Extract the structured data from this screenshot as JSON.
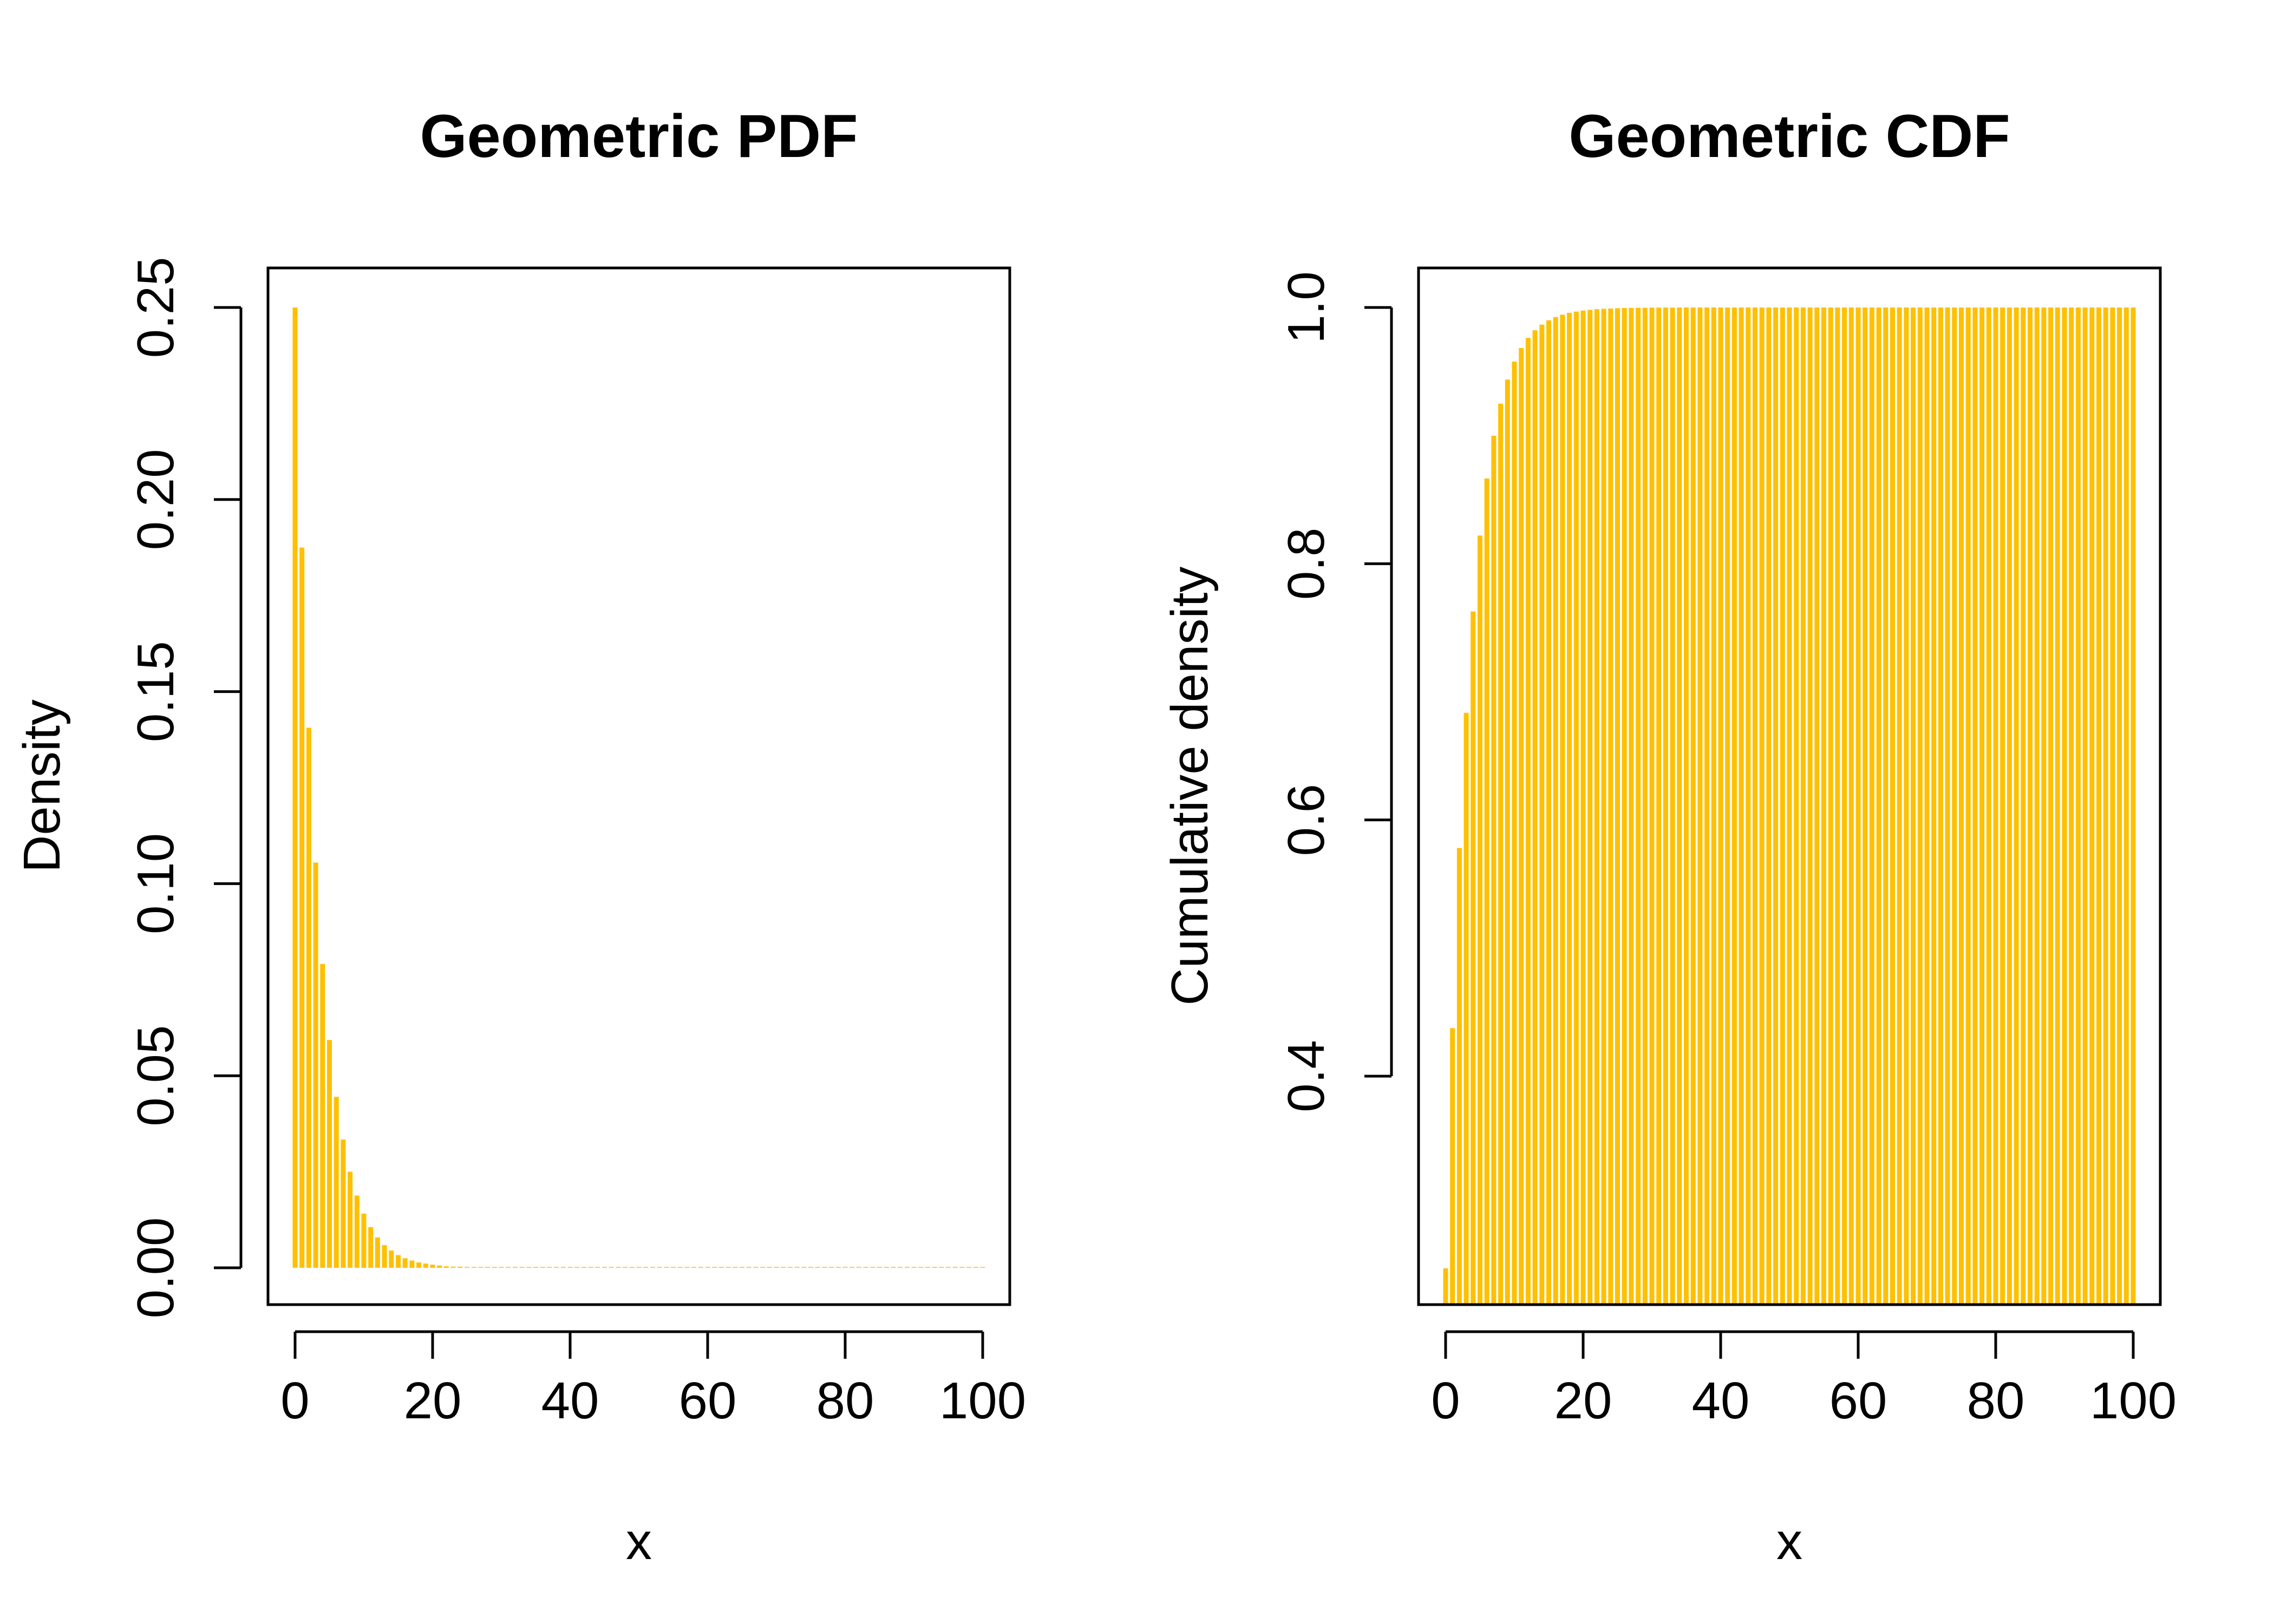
{
  "style": {
    "bar_color": "#FFC000",
    "axis_color": "#000000",
    "background": "#FFFFFF"
  },
  "chart_data": [
    {
      "type": "bar",
      "title": "Geometric PDF",
      "xlabel": "x",
      "ylabel": "Density",
      "xlim": [
        0,
        100
      ],
      "ylim": [
        0,
        0.25
      ],
      "x_ticks": [
        0,
        20,
        40,
        60,
        80,
        100
      ],
      "x_tick_labels": [
        "0",
        "20",
        "40",
        "60",
        "80",
        "100"
      ],
      "y_ticks": [
        0,
        0.05,
        0.1,
        0.15,
        0.2,
        0.25
      ],
      "y_tick_labels": [
        "0.00",
        "0.05",
        "0.10",
        "0.15",
        "0.20",
        "0.25"
      ],
      "grid": false,
      "x": [
        0,
        1,
        2,
        3,
        4,
        5,
        6,
        7,
        8,
        9,
        10,
        11,
        12,
        13,
        14,
        15,
        16,
        17,
        18,
        19,
        20,
        21,
        22,
        23,
        24,
        25,
        26,
        27,
        28,
        29,
        30,
        31,
        32,
        33,
        34,
        35,
        36,
        37,
        38,
        39,
        40,
        41,
        42,
        43,
        44,
        45,
        46,
        47,
        48,
        49,
        50,
        51,
        52,
        53,
        54,
        55,
        56,
        57,
        58,
        59,
        60,
        61,
        62,
        63,
        64,
        65,
        66,
        67,
        68,
        69,
        70,
        71,
        72,
        73,
        74,
        75,
        76,
        77,
        78,
        79,
        80,
        81,
        82,
        83,
        84,
        85,
        86,
        87,
        88,
        89,
        90,
        91,
        92,
        93,
        94,
        95,
        96,
        97,
        98,
        99,
        100
      ],
      "values": [
        0.25,
        0.1875,
        0.1406,
        0.1055,
        0.0791,
        0.0593,
        0.0445,
        0.0334,
        0.025,
        0.0188,
        0.0141,
        0.0106,
        0.0079,
        0.0059,
        0.0045,
        0.0033,
        0.0025,
        0.0019,
        0.0014,
        0.0011,
        0.0008,
        0.0006,
        0.0004,
        0.0003,
        0.0003,
        0.0002,
        0.0001,
        0.0001,
        0.0001,
        0.0001,
        0,
        0,
        0,
        0,
        0,
        0,
        0,
        0,
        0,
        0,
        0,
        0,
        0,
        0,
        0,
        0,
        0,
        0,
        0,
        0,
        0,
        0,
        0,
        0,
        0,
        0,
        0,
        0,
        0,
        0,
        0,
        0,
        0,
        0,
        0,
        0,
        0,
        0,
        0,
        0,
        0,
        0,
        0,
        0,
        0,
        0,
        0,
        0,
        0,
        0,
        0,
        0,
        0,
        0,
        0,
        0,
        0,
        0,
        0,
        0,
        0,
        0,
        0,
        0,
        0,
        0,
        0,
        0,
        0,
        0,
        0
      ]
    },
    {
      "type": "bar",
      "title": "Geometric CDF",
      "xlabel": "x",
      "ylabel": "Cumulative density",
      "xlim": [
        0,
        100
      ],
      "ylim": [
        0.25,
        1.0
      ],
      "x_ticks": [
        0,
        20,
        40,
        60,
        80,
        100
      ],
      "x_tick_labels": [
        "0",
        "20",
        "40",
        "60",
        "80",
        "100"
      ],
      "y_ticks": [
        0.4,
        0.6,
        0.8,
        1.0
      ],
      "y_tick_labels": [
        "0.4",
        "0.6",
        "0.8",
        "1.0"
      ],
      "grid": false,
      "x": [
        0,
        1,
        2,
        3,
        4,
        5,
        6,
        7,
        8,
        9,
        10,
        11,
        12,
        13,
        14,
        15,
        16,
        17,
        18,
        19,
        20,
        21,
        22,
        23,
        24,
        25,
        26,
        27,
        28,
        29,
        30,
        31,
        32,
        33,
        34,
        35,
        36,
        37,
        38,
        39,
        40,
        41,
        42,
        43,
        44,
        45,
        46,
        47,
        48,
        49,
        50,
        51,
        52,
        53,
        54,
        55,
        56,
        57,
        58,
        59,
        60,
        61,
        62,
        63,
        64,
        65,
        66,
        67,
        68,
        69,
        70,
        71,
        72,
        73,
        74,
        75,
        76,
        77,
        78,
        79,
        80,
        81,
        82,
        83,
        84,
        85,
        86,
        87,
        88,
        89,
        90,
        91,
        92,
        93,
        94,
        95,
        96,
        97,
        98,
        99,
        100
      ],
      "values": [
        0.25,
        0.4375,
        0.5781,
        0.6836,
        0.7627,
        0.822,
        0.8665,
        0.8999,
        0.9249,
        0.9437,
        0.9578,
        0.9683,
        0.9762,
        0.9822,
        0.9866,
        0.99,
        0.9925,
        0.9944,
        0.9958,
        0.9968,
        0.9976,
        0.9982,
        0.9987,
        0.999,
        0.9992,
        0.9994,
        0.9996,
        0.9997,
        0.9998,
        0.9998,
        0.9999,
        0.9999,
        0.9999,
        0.9999,
        1,
        1,
        1,
        1,
        1,
        1,
        1,
        1,
        1,
        1,
        1,
        1,
        1,
        1,
        1,
        1,
        1,
        1,
        1,
        1,
        1,
        1,
        1,
        1,
        1,
        1,
        1,
        1,
        1,
        1,
        1,
        1,
        1,
        1,
        1,
        1,
        1,
        1,
        1,
        1,
        1,
        1,
        1,
        1,
        1,
        1,
        1,
        1,
        1,
        1,
        1,
        1,
        1,
        1,
        1,
        1,
        1,
        1,
        1,
        1,
        1,
        1,
        1,
        1,
        1,
        1,
        1
      ]
    }
  ]
}
